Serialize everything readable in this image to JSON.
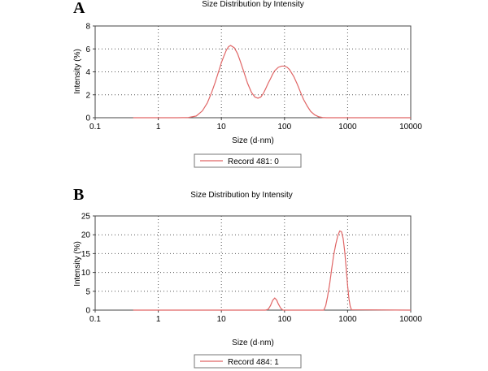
{
  "chart_data": [
    {
      "panel": "A",
      "type": "line",
      "title": "Size Distribution by Intensity",
      "xlabel": "Size (d·nm)",
      "ylabel": "Intensity (%)",
      "xscale": "log",
      "xlim": [
        0.1,
        10000
      ],
      "ylim": [
        0,
        8
      ],
      "xticks": [
        0.1,
        1,
        10,
        100,
        1000,
        10000
      ],
      "xtick_labels": [
        "0.1",
        "1",
        "10",
        "100",
        "1000",
        "10000"
      ],
      "yticks": [
        0,
        2,
        4,
        6,
        8
      ],
      "ytick_labels": [
        "0",
        "2",
        "4",
        "6",
        "8"
      ],
      "grid": true,
      "legend_position": "bottom-center",
      "series": [
        {
          "name": "Record 481: 0",
          "color": "#e06666",
          "x": [
            0.4,
            2,
            3,
            4,
            5,
            6,
            7,
            8,
            9,
            10,
            11,
            12,
            13,
            14,
            16,
            18,
            20,
            23,
            26,
            30,
            34,
            38,
            42,
            46,
            50,
            55,
            60,
            65,
            70,
            80,
            90,
            100,
            110,
            120,
            140,
            160,
            180,
            200,
            230,
            260,
            300,
            350,
            400,
            460,
            10000
          ],
          "y": [
            0,
            0,
            0.02,
            0.15,
            0.6,
            1.3,
            2.2,
            3.1,
            4.0,
            4.8,
            5.4,
            5.9,
            6.2,
            6.3,
            6.1,
            5.6,
            4.9,
            3.9,
            3.0,
            2.2,
            1.8,
            1.7,
            1.8,
            2.1,
            2.5,
            3.0,
            3.4,
            3.8,
            4.1,
            4.4,
            4.5,
            4.5,
            4.4,
            4.2,
            3.6,
            2.9,
            2.2,
            1.6,
            1.0,
            0.55,
            0.25,
            0.08,
            0.02,
            0,
            0
          ]
        }
      ]
    },
    {
      "panel": "B",
      "type": "line",
      "title": "Size Distribution by Intensity",
      "xlabel": "Size (d·nm)",
      "ylabel": "Intensity (%)",
      "xscale": "log",
      "xlim": [
        0.1,
        10000
      ],
      "ylim": [
        0,
        25
      ],
      "xticks": [
        0.1,
        1,
        10,
        100,
        1000,
        10000
      ],
      "xtick_labels": [
        "0.1",
        "1",
        "10",
        "100",
        "1000",
        "10000"
      ],
      "yticks": [
        0,
        5,
        10,
        15,
        20,
        25
      ],
      "ytick_labels": [
        "0",
        "5",
        "10",
        "15",
        "20",
        "25"
      ],
      "grid": true,
      "legend_position": "bottom-center",
      "series": [
        {
          "name": "Record 484: 1",
          "color": "#e06666",
          "x": [
            0.4,
            50,
            55,
            60,
            65,
            70,
            75,
            80,
            88,
            95,
            420,
            450,
            480,
            520,
            560,
            600,
            650,
            700,
            750,
            800,
            850,
            900,
            950,
            1000,
            1050,
            1100,
            1150,
            10000
          ],
          "y": [
            0,
            0,
            0.2,
            1.2,
            2.6,
            3.2,
            2.7,
            1.6,
            0.4,
            0,
            0,
            1.2,
            3.5,
            7.0,
            11.0,
            14.5,
            17.5,
            19.8,
            21.0,
            20.8,
            19.0,
            15.5,
            11.0,
            6.5,
            3.0,
            1.0,
            0.1,
            0
          ]
        }
      ]
    }
  ],
  "labels": {
    "panel_a": "A",
    "panel_b": "B"
  }
}
